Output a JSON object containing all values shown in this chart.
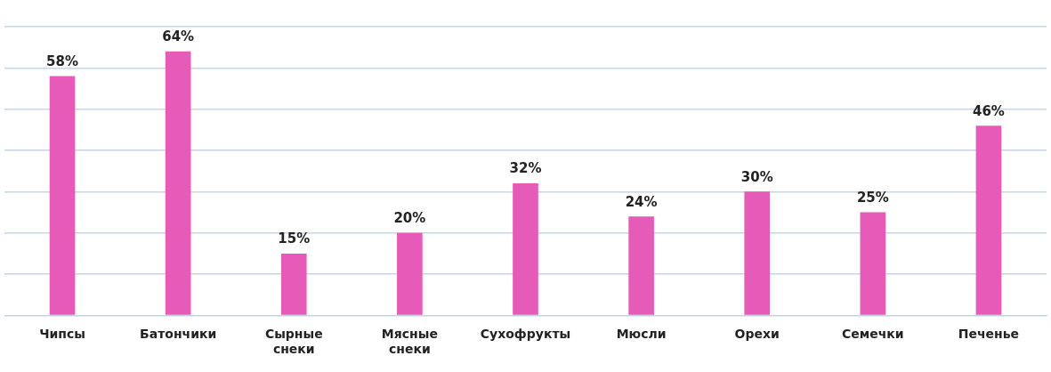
{
  "chart_data": {
    "type": "bar",
    "categories": [
      "Чипсы",
      "Батончики",
      "Сырные снеки",
      "Мясные снеки",
      "Сухофрукты",
      "Мюсли",
      "Орехи",
      "Семечки",
      "Печенье"
    ],
    "values": [
      58,
      64,
      15,
      20,
      32,
      24,
      30,
      25,
      46
    ],
    "value_labels": [
      "58%",
      "64%",
      "15%",
      "20%",
      "32%",
      "24%",
      "30%",
      "25%",
      "46%"
    ],
    "color": "#e65ab8",
    "ylim": [
      0,
      70
    ],
    "yticks": [
      {
        "value": 0,
        "label": null
      },
      {
        "value": 10,
        "label": null
      },
      {
        "value": 20,
        "label": null
      },
      {
        "value": 30,
        "label": null
      },
      {
        "value": 40,
        "label": null
      },
      {
        "value": 50,
        "label": null
      },
      {
        "value": 60,
        "label": null
      },
      {
        "value": 70,
        "label": null
      }
    ],
    "grid": "y",
    "tick_labels": "x"
  }
}
